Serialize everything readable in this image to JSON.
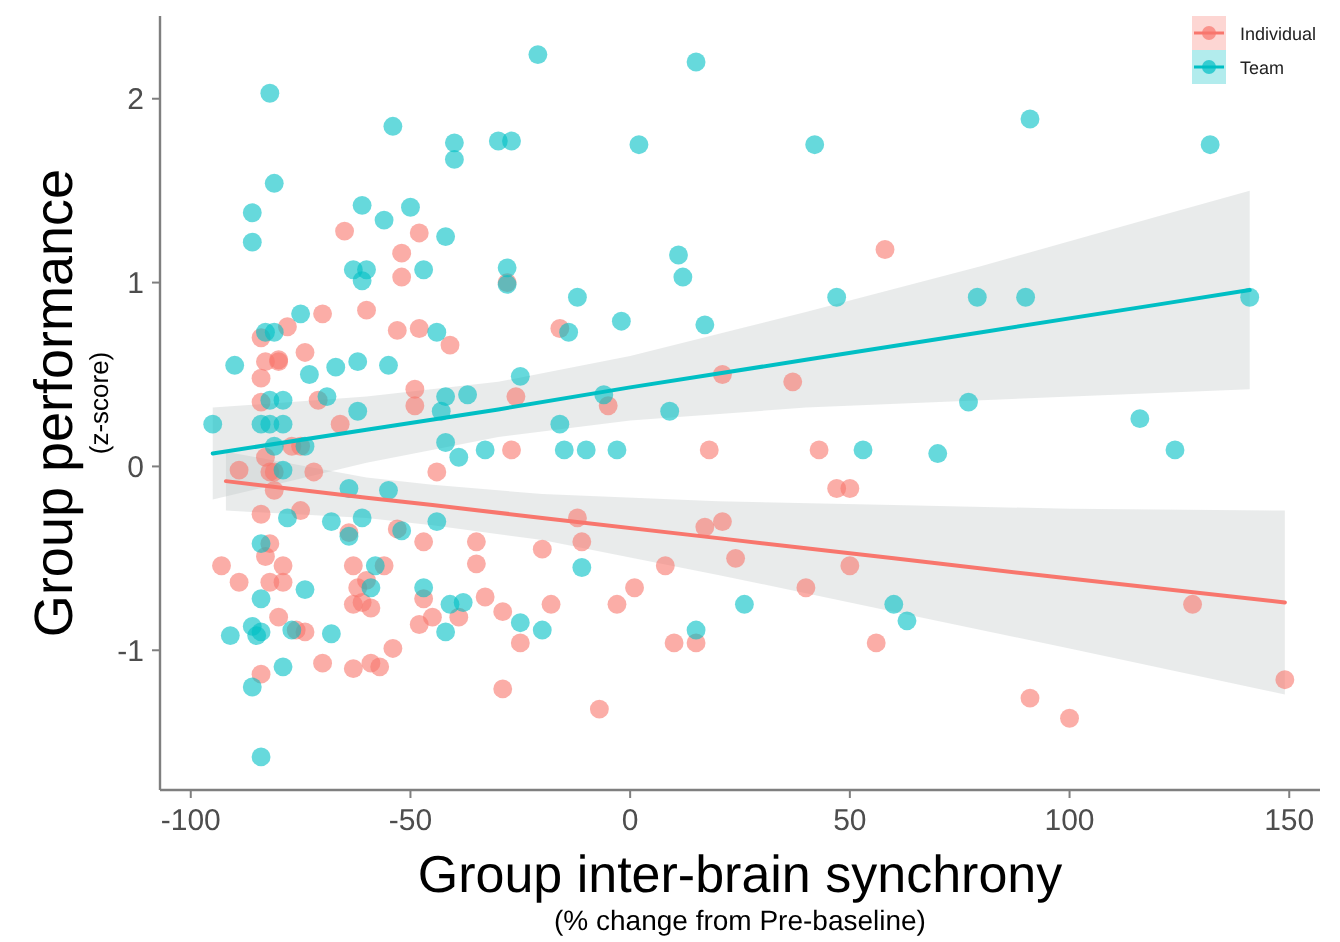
{
  "chart_data": {
    "type": "scatter",
    "xlabel": "Group inter-brain synchrony\n(% change from Pre-baseline)",
    "ylabel": "Group performance\n(z-score)",
    "xlim": [
      -107,
      157
    ],
    "ylim": [
      -1.76,
      2.45
    ],
    "xticks": [
      -100,
      -50,
      0,
      50,
      100,
      150
    ],
    "yticks": [
      -1,
      0,
      1,
      2
    ],
    "grid": false,
    "legend": "top right",
    "marker": "circle",
    "series": [
      {
        "name": "Individual",
        "color": "#f8766d",
        "x": [
          -65,
          -48,
          -52,
          -52,
          -28,
          -70,
          -60,
          -78,
          -53,
          -48,
          -41,
          -16,
          -84,
          -74,
          -83,
          -80,
          -80,
          -84,
          -49,
          -49,
          -71,
          -84,
          -66,
          -26,
          -77,
          -75,
          -83,
          -27,
          -89,
          -82,
          -81,
          -72,
          -44,
          -81,
          -84,
          -75,
          -64,
          -53,
          -47,
          -35,
          -35,
          -20,
          -93,
          -89,
          -83,
          -82,
          -79,
          -82,
          -79,
          -63,
          -56,
          -60,
          -62,
          -63,
          -59,
          -61,
          -47,
          -80,
          -76,
          -74,
          -48,
          -45,
          -39,
          -33,
          -29,
          -18,
          -25,
          -54,
          -70,
          -63,
          -59,
          -57,
          -84,
          -29,
          58,
          -5,
          21,
          37,
          18,
          43,
          47,
          50,
          -12,
          -11,
          17,
          21,
          24,
          8,
          50,
          -3,
          1,
          40,
          10,
          15,
          56,
          -7,
          128,
          149,
          91,
          100
        ],
        "values": [
          1.28,
          1.27,
          1.16,
          1.03,
          1.0,
          0.83,
          0.85,
          0.76,
          0.74,
          0.75,
          0.66,
          0.75,
          0.7,
          0.62,
          0.57,
          0.58,
          0.57,
          0.48,
          0.42,
          0.33,
          0.36,
          0.35,
          0.23,
          0.38,
          0.11,
          0.11,
          0.05,
          0.09,
          -0.02,
          -0.03,
          -0.03,
          -0.03,
          -0.03,
          -0.13,
          -0.26,
          -0.24,
          -0.36,
          -0.34,
          -0.41,
          -0.41,
          -0.53,
          -0.45,
          -0.54,
          -0.63,
          -0.49,
          -0.42,
          -0.54,
          -0.63,
          -0.63,
          -0.54,
          -0.54,
          -0.62,
          -0.66,
          -0.75,
          -0.77,
          -0.74,
          -0.72,
          -0.82,
          -0.89,
          -0.9,
          -0.86,
          -0.82,
          -0.82,
          -0.71,
          -0.79,
          -0.75,
          -0.96,
          -0.99,
          -1.07,
          -1.1,
          -1.07,
          -1.09,
          -1.13,
          -1.21,
          1.18,
          0.33,
          0.5,
          0.46,
          0.09,
          0.09,
          -0.12,
          -0.12,
          -0.28,
          -0.41,
          -0.33,
          -0.3,
          -0.5,
          -0.54,
          -0.54,
          -0.75,
          -0.66,
          -0.66,
          -0.96,
          -0.96,
          -0.96,
          -1.32,
          -0.75,
          -1.16,
          -1.26,
          -1.37
        ]
      },
      {
        "name": "Team",
        "color": "#00bfc4",
        "x": [
          -21,
          -82,
          -54,
          -40,
          -40,
          -30,
          -27,
          -81,
          -86,
          -86,
          -61,
          -56,
          -50,
          -42,
          -63,
          -60,
          -61,
          -47,
          -28,
          -28,
          -75,
          -83,
          -81,
          -44,
          -90,
          -73,
          -67,
          -62,
          -55,
          -25,
          -69,
          -82,
          -79,
          -42,
          -37,
          -43,
          -62,
          -95,
          -84,
          -82,
          -79,
          -16,
          -42,
          -74,
          -81,
          -33,
          -39,
          -79,
          -64,
          -55,
          -78,
          -68,
          -61,
          -52,
          -44,
          -64,
          -84,
          -58,
          -59,
          -74,
          -84,
          -47,
          -41,
          -38,
          -86,
          -84,
          -85,
          -91,
          -77,
          -68,
          -42,
          -25,
          -20,
          -79,
          -86,
          -84,
          15,
          2,
          42,
          11,
          12,
          -12,
          -14,
          -2,
          17,
          47,
          -6,
          9,
          -15,
          -10,
          -3,
          53,
          70,
          -11,
          26,
          15,
          60,
          63,
          91,
          132,
          79,
          90,
          141,
          77,
          116,
          124
        ],
        "values": [
          2.24,
          2.03,
          1.85,
          1.76,
          1.67,
          1.77,
          1.77,
          1.54,
          1.38,
          1.22,
          1.42,
          1.34,
          1.41,
          1.25,
          1.07,
          1.07,
          1.01,
          1.07,
          1.08,
          0.99,
          0.83,
          0.73,
          0.73,
          0.73,
          0.55,
          0.5,
          0.54,
          0.57,
          0.55,
          0.49,
          0.38,
          0.36,
          0.36,
          0.38,
          0.39,
          0.3,
          0.3,
          0.23,
          0.23,
          0.23,
          0.23,
          0.23,
          0.13,
          0.11,
          0.11,
          0.09,
          0.05,
          -0.02,
          -0.12,
          -0.13,
          -0.28,
          -0.3,
          -0.28,
          -0.35,
          -0.3,
          -0.38,
          -0.42,
          -0.54,
          -0.66,
          -0.67,
          -0.72,
          -0.66,
          -0.75,
          -0.74,
          -0.87,
          -0.9,
          -0.92,
          -0.92,
          -0.89,
          -0.91,
          -0.9,
          -0.85,
          -0.89,
          -1.09,
          -1.2,
          -1.58,
          2.2,
          1.75,
          1.75,
          1.15,
          1.03,
          0.92,
          0.73,
          0.79,
          0.77,
          0.92,
          0.39,
          0.3,
          0.09,
          0.09,
          0.09,
          0.09,
          0.07,
          -0.55,
          -0.75,
          -0.89,
          -0.75,
          -0.84,
          1.89,
          1.75,
          0.92,
          0.92,
          0.92,
          0.35,
          0.26,
          0.09
        ]
      },
      {
        "type": "line",
        "marker": "none",
        "color": "#f8766d",
        "x": [
          -92,
          -60,
          -45,
          -20,
          20,
          60,
          100,
          149
        ],
        "values": [
          -0.08,
          -0.17,
          -0.21,
          -0.28,
          -0.39,
          -0.5,
          -0.61,
          -0.74
        ],
        "lower": [
          -0.24,
          -0.28,
          -0.32,
          -0.4,
          -0.59,
          -0.79,
          -0.99,
          -1.24
        ],
        "upper": [
          0.08,
          -0.06,
          -0.1,
          -0.15,
          -0.19,
          -0.21,
          -0.23,
          -0.24
        ]
      },
      {
        "type": "line",
        "marker": "none",
        "color": "#00bfc4",
        "x": [
          -95,
          -60,
          -30,
          0,
          40,
          80,
          120,
          141
        ],
        "values": [
          0.07,
          0.2,
          0.31,
          0.43,
          0.58,
          0.73,
          0.88,
          0.96
        ],
        "lower": [
          -0.18,
          0.02,
          0.16,
          0.25,
          0.32,
          0.36,
          0.4,
          0.42
        ],
        "upper": [
          0.32,
          0.38,
          0.46,
          0.6,
          0.84,
          1.09,
          1.36,
          1.5
        ]
      }
    ]
  }
}
